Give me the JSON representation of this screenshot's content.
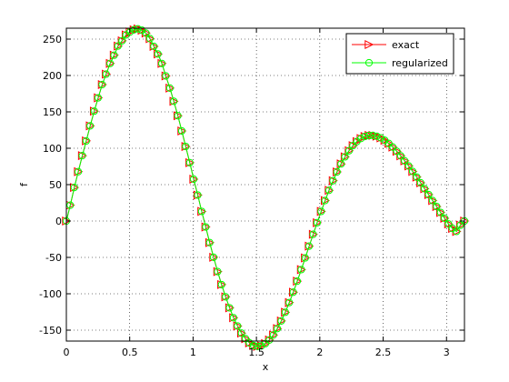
{
  "chart_data": {
    "type": "line",
    "xlabel": "x",
    "ylabel": "f",
    "xlim": [
      0,
      3.1416
    ],
    "ylim": [
      -165,
      265
    ],
    "xticks": [
      0,
      0.5,
      1,
      1.5,
      2,
      2.5,
      3
    ],
    "xtick_labels": [
      "0",
      "0.5",
      "1",
      "1.5",
      "2",
      "2.5",
      "3"
    ],
    "yticks": [
      -150,
      -100,
      -50,
      0,
      50,
      100,
      150,
      200,
      250
    ],
    "ytick_labels": [
      "-150",
      "-100",
      "-50",
      "0",
      "50",
      "100",
      "150",
      "200",
      "250"
    ],
    "grid": true,
    "legend_position": "top-right",
    "series": [
      {
        "name": "exact",
        "color": "#ff0000",
        "marker": "triangle-right",
        "x": [
          0.0,
          0.031,
          0.063,
          0.094,
          0.126,
          0.157,
          0.188,
          0.22,
          0.251,
          0.283,
          0.314,
          0.346,
          0.377,
          0.408,
          0.44,
          0.471,
          0.503,
          0.534,
          0.565,
          0.597,
          0.628,
          0.66,
          0.691,
          0.723,
          0.754,
          0.785,
          0.817,
          0.848,
          0.88,
          0.911,
          0.942,
          0.974,
          1.005,
          1.037,
          1.068,
          1.1,
          1.131,
          1.162,
          1.194,
          1.225,
          1.257,
          1.288,
          1.319,
          1.351,
          1.382,
          1.414,
          1.445,
          1.477,
          1.508,
          1.539,
          1.571,
          1.602,
          1.634,
          1.665,
          1.696,
          1.728,
          1.759,
          1.791,
          1.822,
          1.854,
          1.885,
          1.916,
          1.948,
          1.979,
          2.011,
          2.042,
          2.073,
          2.105,
          2.136,
          2.168,
          2.199,
          2.231,
          2.262,
          2.293,
          2.325,
          2.356,
          2.388,
          2.419,
          2.45,
          2.482,
          2.513,
          2.545,
          2.576,
          2.608,
          2.639,
          2.67,
          2.702,
          2.733,
          2.765,
          2.796,
          2.827,
          2.859,
          2.89,
          2.922,
          2.953,
          2.985,
          3.016,
          3.047,
          3.079,
          3.11,
          3.142
        ],
        "y": [
          0.0,
          21.7,
          46.1,
          67.8,
          89.8,
          110.1,
          130.8,
          151.0,
          169.3,
          187.5,
          201.9,
          216.6,
          227.9,
          240.5,
          247.7,
          255.8,
          259.8,
          262.8,
          264.1,
          262.2,
          258.3,
          250.6,
          240.0,
          229.5,
          216.5,
          199.4,
          182.7,
          164.5,
          144.7,
          123.8,
          102.4,
          80.2,
          57.5,
          35.6,
          13.2,
          -8.2,
          -29.7,
          -49.8,
          -69.5,
          -87.4,
          -104.2,
          -119.3,
          -132.9,
          -144.3,
          -154.1,
          -161.7,
          -167.5,
          -171.0,
          -172.3,
          -171.6,
          -168.4,
          -163.5,
          -156.6,
          -147.8,
          -137.3,
          -125.4,
          -112.1,
          -97.8,
          -82.7,
          -66.8,
          -50.7,
          -34.5,
          -18.3,
          -2.3,
          13.2,
          28.1,
          42.2,
          55.4,
          67.5,
          78.5,
          88.2,
          96.6,
          103.6,
          109.2,
          113.4,
          116.2,
          117.6,
          117.7,
          116.5,
          114.2,
          110.9,
          106.6,
          101.6,
          95.8,
          89.5,
          82.7,
          75.6,
          68.1,
          60.4,
          52.5,
          44.4,
          36.3,
          28.1,
          19.9,
          11.8,
          3.8,
          -4.1,
          -10.1,
          -14.3,
          -5.7,
          0.0
        ]
      },
      {
        "name": "regularized",
        "color": "#00ff00",
        "marker": "circle",
        "x": [
          0.0,
          0.031,
          0.063,
          0.094,
          0.126,
          0.157,
          0.188,
          0.22,
          0.251,
          0.283,
          0.314,
          0.346,
          0.377,
          0.408,
          0.44,
          0.471,
          0.503,
          0.534,
          0.565,
          0.597,
          0.628,
          0.66,
          0.691,
          0.723,
          0.754,
          0.785,
          0.817,
          0.848,
          0.88,
          0.911,
          0.942,
          0.974,
          1.005,
          1.037,
          1.068,
          1.1,
          1.131,
          1.162,
          1.194,
          1.225,
          1.257,
          1.288,
          1.319,
          1.351,
          1.382,
          1.414,
          1.445,
          1.477,
          1.508,
          1.539,
          1.571,
          1.602,
          1.634,
          1.665,
          1.696,
          1.728,
          1.759,
          1.791,
          1.822,
          1.854,
          1.885,
          1.916,
          1.948,
          1.979,
          2.011,
          2.042,
          2.073,
          2.105,
          2.136,
          2.168,
          2.199,
          2.231,
          2.262,
          2.293,
          2.325,
          2.356,
          2.388,
          2.419,
          2.45,
          2.482,
          2.513,
          2.545,
          2.576,
          2.608,
          2.639,
          2.67,
          2.702,
          2.733,
          2.765,
          2.796,
          2.827,
          2.859,
          2.89,
          2.922,
          2.953,
          2.985,
          3.016,
          3.047,
          3.079,
          3.11,
          3.142
        ],
        "y": [
          0.0,
          21.7,
          46.1,
          67.8,
          89.8,
          110.1,
          130.8,
          151.0,
          169.3,
          187.5,
          201.9,
          216.6,
          227.9,
          240.5,
          247.7,
          255.8,
          259.8,
          262.8,
          264.1,
          262.2,
          258.3,
          250.6,
          240.0,
          229.5,
          216.5,
          199.4,
          182.7,
          164.5,
          144.7,
          123.8,
          102.4,
          80.2,
          57.5,
          35.6,
          13.2,
          -8.2,
          -29.7,
          -49.8,
          -69.5,
          -87.4,
          -104.2,
          -119.3,
          -132.9,
          -144.3,
          -154.1,
          -161.7,
          -167.5,
          -171.0,
          -172.3,
          -171.6,
          -168.4,
          -163.5,
          -156.6,
          -147.8,
          -137.3,
          -125.4,
          -112.1,
          -97.8,
          -82.7,
          -66.8,
          -50.7,
          -34.5,
          -18.3,
          -2.3,
          13.2,
          28.1,
          42.2,
          55.4,
          67.5,
          78.5,
          88.2,
          96.6,
          103.6,
          109.2,
          113.4,
          116.2,
          117.6,
          117.7,
          116.5,
          114.2,
          110.9,
          106.6,
          101.6,
          95.8,
          89.5,
          82.7,
          75.6,
          68.1,
          60.4,
          52.5,
          44.4,
          36.3,
          28.1,
          19.9,
          11.8,
          3.8,
          -4.1,
          -10.1,
          -14.3,
          -5.7,
          0.0
        ]
      }
    ]
  }
}
